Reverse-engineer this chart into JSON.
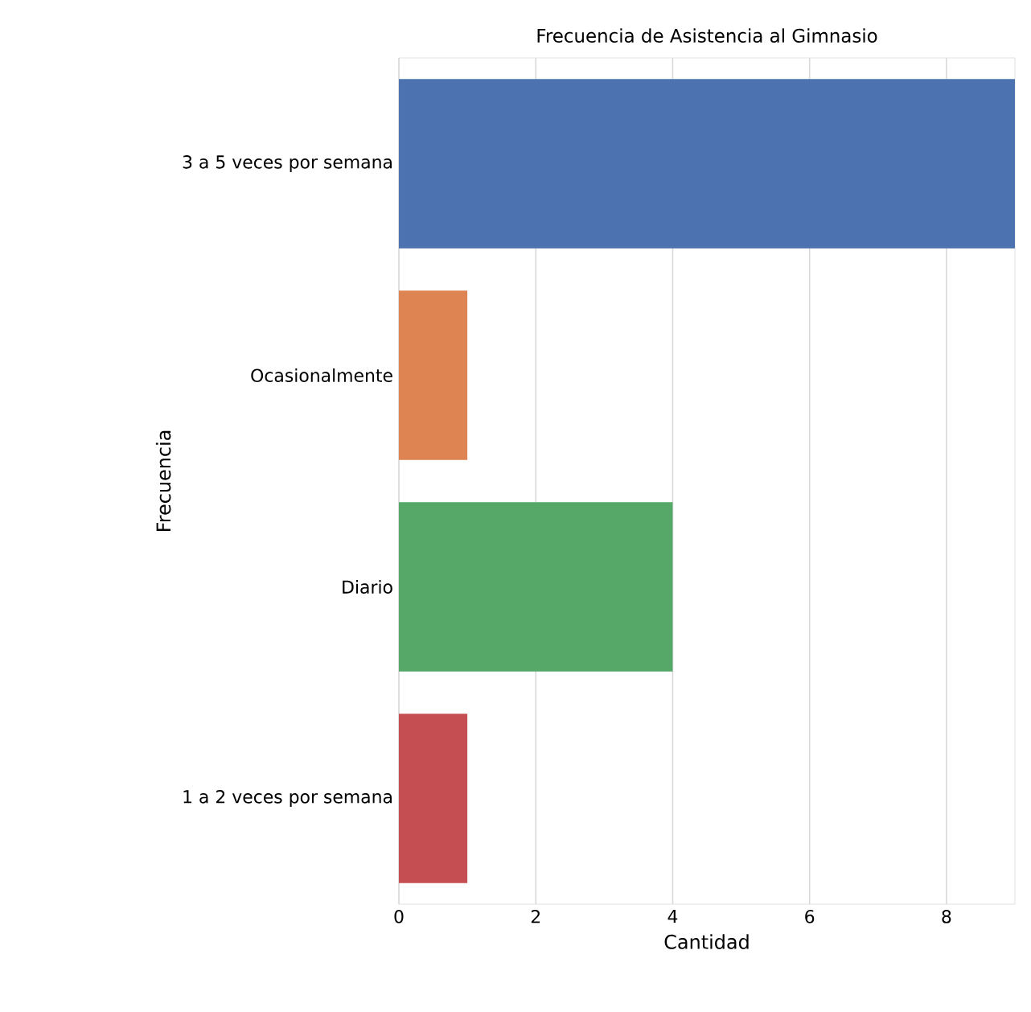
{
  "chart_data": {
    "type": "bar",
    "orientation": "horizontal",
    "title": "Frecuencia de Asistencia al Gimnasio",
    "xlabel": "Cantidad",
    "ylabel": "Frecuencia",
    "categories": [
      "3 a 5 veces por semana",
      "Ocasionalmente",
      "Diario",
      "1 a 2 veces por semana"
    ],
    "values": [
      9,
      1,
      4,
      1
    ],
    "colors": [
      "#4c72b0",
      "#dd8452",
      "#55a868",
      "#c44e52"
    ],
    "xlim": [
      0,
      9
    ],
    "xticks": [
      0,
      2,
      4,
      6,
      8
    ],
    "grid": "x"
  }
}
